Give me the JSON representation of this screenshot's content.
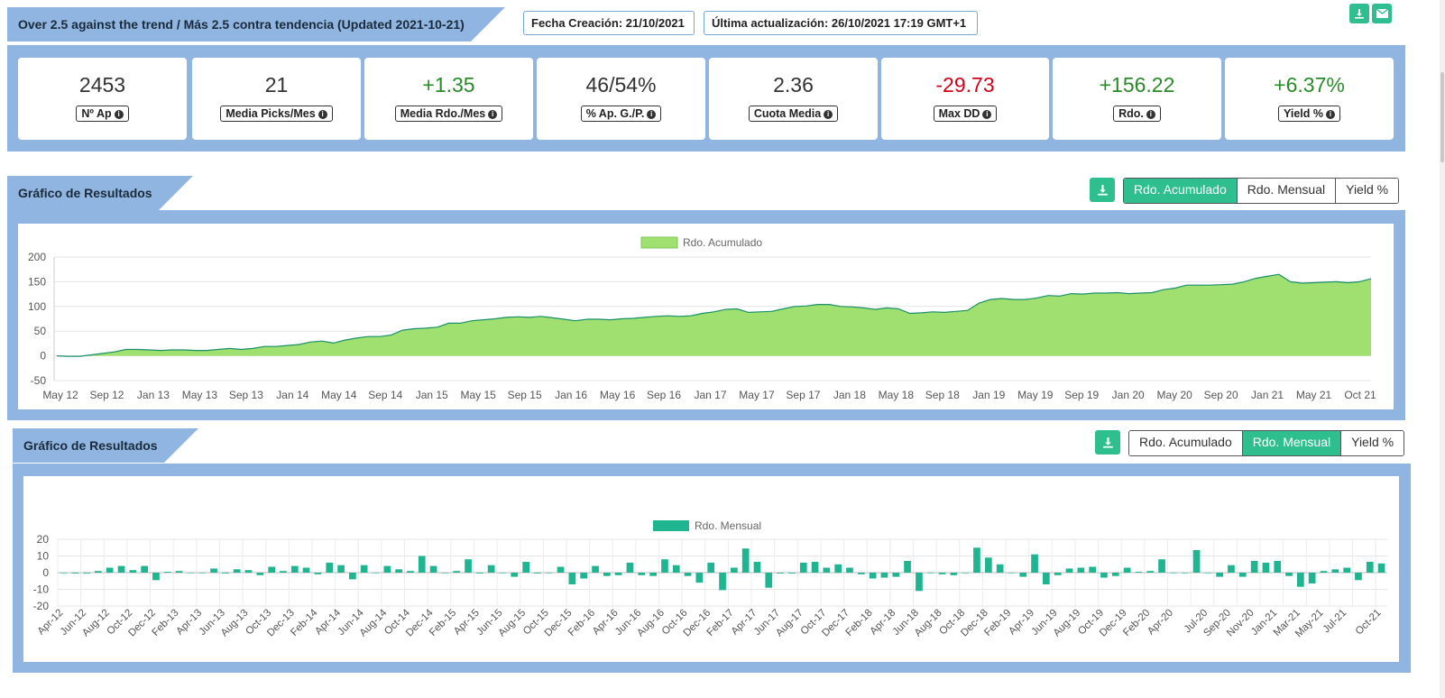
{
  "header": {
    "title": "Over 2.5 against the trend / Más 2.5 contra tendencia (Updated 2021-10-21)",
    "fecha_creacion": "Fecha Creación: 21/10/2021",
    "ultima_actualizacion": "Última actualización: 26/10/2021 17:19 GMT+1",
    "download_icon": "download-icon",
    "mail_icon": "envelope-icon"
  },
  "stats": [
    {
      "value": "2453",
      "label": "Nº Ap",
      "tone": "neutral"
    },
    {
      "value": "21",
      "label": "Media Picks/Mes",
      "tone": "neutral"
    },
    {
      "value": "+1.35",
      "label": "Media Rdo./Mes",
      "tone": "pos"
    },
    {
      "value": "46/54%",
      "label": "% Ap. G./P.",
      "tone": "neutral"
    },
    {
      "value": "2.36",
      "label": "Cuota Media",
      "tone": "neutral"
    },
    {
      "value": "-29.73",
      "label": "Max DD",
      "tone": "neg"
    },
    {
      "value": "+156.22",
      "label": "Rdo.",
      "tone": "pos"
    },
    {
      "value": "+6.37%",
      "label": "Yield %",
      "tone": "pos"
    }
  ],
  "info_glyph": "i",
  "section1": {
    "title": "Gráfico de Resultados",
    "buttons": [
      "Rdo. Acumulado",
      "Rdo. Mensual",
      "Yield %"
    ],
    "active": 0,
    "download_glyph": "⤓"
  },
  "section2": {
    "title": "Gráfico de Resultados",
    "buttons": [
      "Rdo. Acumulado",
      "Rdo. Mensual",
      "Yield %"
    ],
    "active": 1,
    "download_glyph": "⤓"
  },
  "colors": {
    "accent": "#2fbf8f",
    "area_fill": "#9fe070",
    "area_line": "#1a8f6a",
    "bar": "#1fb591",
    "panel": "#8fb5e0"
  },
  "chart_data": [
    {
      "type": "area",
      "legend": "Rdo. Acumulado",
      "ylim": [
        -50,
        200
      ],
      "yticks": [
        200,
        150,
        100,
        50,
        0,
        -50
      ],
      "x_tick_labels": [
        "May 12",
        "Sep 12",
        "Jan 13",
        "May 13",
        "Sep 13",
        "Jan 14",
        "May 14",
        "Sep 14",
        "Jan 15",
        "May 15",
        "Sep 15",
        "Jan 16",
        "May 16",
        "Sep 16",
        "Jan 17",
        "May 17",
        "Sep 17",
        "Jan 18",
        "May 18",
        "Sep 18",
        "Jan 19",
        "May 19",
        "Sep 19",
        "Jan 20",
        "May 20",
        "Sep 20",
        "Jan 21",
        "May 21",
        "Oct 21"
      ],
      "x": [
        "2012-04",
        "2012-05",
        "2012-06",
        "2012-07",
        "2012-08",
        "2012-09",
        "2012-10",
        "2012-11",
        "2012-12",
        "2013-01",
        "2013-02",
        "2013-03",
        "2013-04",
        "2013-05",
        "2013-06",
        "2013-07",
        "2013-08",
        "2013-09",
        "2013-10",
        "2013-11",
        "2013-12",
        "2014-01",
        "2014-02",
        "2014-03",
        "2014-04",
        "2014-05",
        "2014-06",
        "2014-07",
        "2014-08",
        "2014-09",
        "2014-10",
        "2014-11",
        "2014-12",
        "2015-01",
        "2015-02",
        "2015-03",
        "2015-04",
        "2015-05",
        "2015-06",
        "2015-07",
        "2015-08",
        "2015-09",
        "2015-10",
        "2015-11",
        "2015-12",
        "2016-01",
        "2016-02",
        "2016-03",
        "2016-04",
        "2016-05",
        "2016-06",
        "2016-07",
        "2016-08",
        "2016-09",
        "2016-10",
        "2016-11",
        "2016-12",
        "2017-01",
        "2017-02",
        "2017-03",
        "2017-04",
        "2017-05",
        "2017-06",
        "2017-07",
        "2017-08",
        "2017-09",
        "2017-10",
        "2017-11",
        "2017-12",
        "2018-01",
        "2018-02",
        "2018-03",
        "2018-04",
        "2018-05",
        "2018-06",
        "2018-07",
        "2018-08",
        "2018-09",
        "2018-10",
        "2018-11",
        "2018-12",
        "2019-01",
        "2019-02",
        "2019-03",
        "2019-04",
        "2019-05",
        "2019-06",
        "2019-07",
        "2019-08",
        "2019-09",
        "2019-10",
        "2019-11",
        "2019-12",
        "2020-01",
        "2020-02",
        "2020-03",
        "2020-04",
        "2020-05",
        "2020-06",
        "2020-07",
        "2020-08",
        "2020-09",
        "2020-10",
        "2020-11",
        "2020-12",
        "2021-01",
        "2021-02",
        "2021-03",
        "2021-04",
        "2021-05",
        "2021-06",
        "2021-07",
        "2021-08",
        "2021-09",
        "2021-10"
      ],
      "values": [
        0,
        -1,
        -1,
        2,
        5,
        8,
        13,
        13,
        12,
        11,
        12,
        12,
        11,
        11,
        13,
        15,
        13,
        15,
        19,
        19,
        21,
        23,
        28,
        30,
        26,
        32,
        36,
        39,
        39,
        42,
        52,
        55,
        56,
        58,
        66,
        66,
        71,
        73,
        75,
        78,
        79,
        78,
        80,
        77,
        74,
        71,
        74,
        74,
        73,
        75,
        76,
        78,
        80,
        81,
        80,
        81,
        86,
        89,
        94,
        95,
        88,
        89,
        90,
        95,
        100,
        101,
        104,
        104,
        100,
        99,
        97,
        94,
        97,
        95,
        86,
        87,
        89,
        88,
        90,
        92,
        107,
        114,
        116,
        114,
        114,
        117,
        122,
        121,
        126,
        125,
        127,
        127,
        128,
        126,
        127,
        128,
        134,
        137,
        143,
        143,
        143,
        144,
        145,
        150,
        157,
        161,
        165,
        150,
        147,
        148,
        149,
        150,
        148,
        150,
        156
      ]
    },
    {
      "type": "bar",
      "legend": "Rdo. Mensual",
      "ylim": [
        -20,
        20
      ],
      "yticks": [
        20,
        10,
        0,
        -10,
        -20
      ],
      "categories": [
        "Apr-12",
        "May-12",
        "Jun-12",
        "Jul-12",
        "Aug-12",
        "Sep-12",
        "Oct-12",
        "Nov-12",
        "Dec-12",
        "Jan-13",
        "Feb-13",
        "Mar-13",
        "Apr-13",
        "May-13",
        "Jun-13",
        "Jul-13",
        "Aug-13",
        "Sep-13",
        "Oct-13",
        "Nov-13",
        "Dec-13",
        "Jan-14",
        "Feb-14",
        "Mar-14",
        "Apr-14",
        "May-14",
        "Jun-14",
        "Jul-14",
        "Aug-14",
        "Sep-14",
        "Oct-14",
        "Nov-14",
        "Dec-14",
        "Jan-15",
        "Feb-15",
        "Mar-15",
        "Apr-15",
        "May-15",
        "Jun-15",
        "Jul-15",
        "Aug-15",
        "Sep-15",
        "Oct-15",
        "Nov-15",
        "Dec-15",
        "Jan-16",
        "Feb-16",
        "Mar-16",
        "Apr-16",
        "May-16",
        "Jun-16",
        "Jul-16",
        "Aug-16",
        "Sep-16",
        "Oct-16",
        "Nov-16",
        "Dec-16",
        "Jan-17",
        "Feb-17",
        "Mar-17",
        "Apr-17",
        "May-17",
        "Jun-17",
        "Jul-17",
        "Aug-17",
        "Sep-17",
        "Oct-17",
        "Nov-17",
        "Dec-17",
        "Jan-18",
        "Feb-18",
        "Mar-18",
        "Apr-18",
        "May-18",
        "Jun-18",
        "Jul-18",
        "Aug-18",
        "Sep-18",
        "Oct-18",
        "Nov-18",
        "Dec-18",
        "Jan-19",
        "Feb-19",
        "Mar-19",
        "Apr-19",
        "May-19",
        "Jun-19",
        "Jul-19",
        "Aug-19",
        "Sep-19",
        "Oct-19",
        "Nov-19",
        "Dec-19",
        "Jan-20",
        "Feb-20",
        "Mar-20",
        "Apr-20",
        "May-20",
        "Jun-20",
        "Jul-20",
        "Aug-20",
        "Sep-20",
        "Oct-20",
        "Nov-20",
        "Dec-20",
        "Jan-21",
        "Feb-21",
        "Mar-21",
        "Apr-21",
        "May-21",
        "Jun-21",
        "Jul-21",
        "Aug-21",
        "Sep-21",
        "Oct-21"
      ],
      "x_tick_labels": [
        "Apr-12",
        "Jun-12",
        "Aug-12",
        "Oct-12",
        "Dec-12",
        "Feb-13",
        "Apr-13",
        "Jun-13",
        "Aug-13",
        "Oct-13",
        "Dec-13",
        "Feb-14",
        "Apr-14",
        "Jun-14",
        "Aug-14",
        "Oct-14",
        "Dec-14",
        "Feb-15",
        "Apr-15",
        "Jun-15",
        "Aug-15",
        "Oct-15",
        "Dec-15",
        "Feb-16",
        "Apr-16",
        "Jun-16",
        "Aug-16",
        "Oct-16",
        "Dec-16",
        "Feb-17",
        "Apr-17",
        "Jun-17",
        "Aug-17",
        "Oct-17",
        "Dec-17",
        "Feb-18",
        "Apr-18",
        "Jun-18",
        "Aug-18",
        "Oct-18",
        "Dec-18",
        "Feb-19",
        "Apr-19",
        "Jun-19",
        "Aug-19",
        "Oct-19",
        "Dec-19",
        "Feb-20",
        "Apr-20",
        "Jul-20",
        "Sep-20",
        "Nov-20",
        "Jan-21",
        "Mar-21",
        "May-21",
        "Jul-21",
        "Oct-21"
      ],
      "values": [
        0,
        -0.5,
        -0.5,
        1,
        3,
        4,
        1.5,
        4,
        -4.5,
        0.5,
        1,
        0,
        0,
        2.5,
        -0.5,
        2,
        1.5,
        -1.5,
        3.5,
        1,
        4,
        3,
        -1,
        6,
        4.5,
        -4,
        4.5,
        0,
        4,
        2,
        1,
        10,
        4,
        0,
        1,
        8,
        -0.5,
        4.5,
        0,
        -2.5,
        6.5,
        -0.5,
        0,
        3.5,
        -7,
        -3.5,
        4,
        -2,
        -1.5,
        6,
        -1.5,
        -2,
        8,
        4.5,
        -2,
        -6,
        6,
        -10.5,
        3,
        14.5,
        6.5,
        -9,
        -0.5,
        -0.5,
        6,
        6.5,
        3,
        5,
        3,
        -1,
        -3.5,
        -3,
        -2.5,
        7,
        -11,
        0,
        -1,
        -1.5,
        0,
        15,
        9,
        5,
        0,
        -2.5,
        11,
        -7,
        -1.5,
        2.5,
        3,
        3.5,
        -3,
        -2,
        3,
        0.5,
        1,
        8,
        0,
        0,
        13.5,
        0,
        -2.5,
        4.5,
        -2.5,
        7,
        6,
        7,
        -2,
        -8.5,
        -6.5,
        1,
        2,
        3,
        -4.5,
        6.5,
        5.5
      ]
    }
  ]
}
